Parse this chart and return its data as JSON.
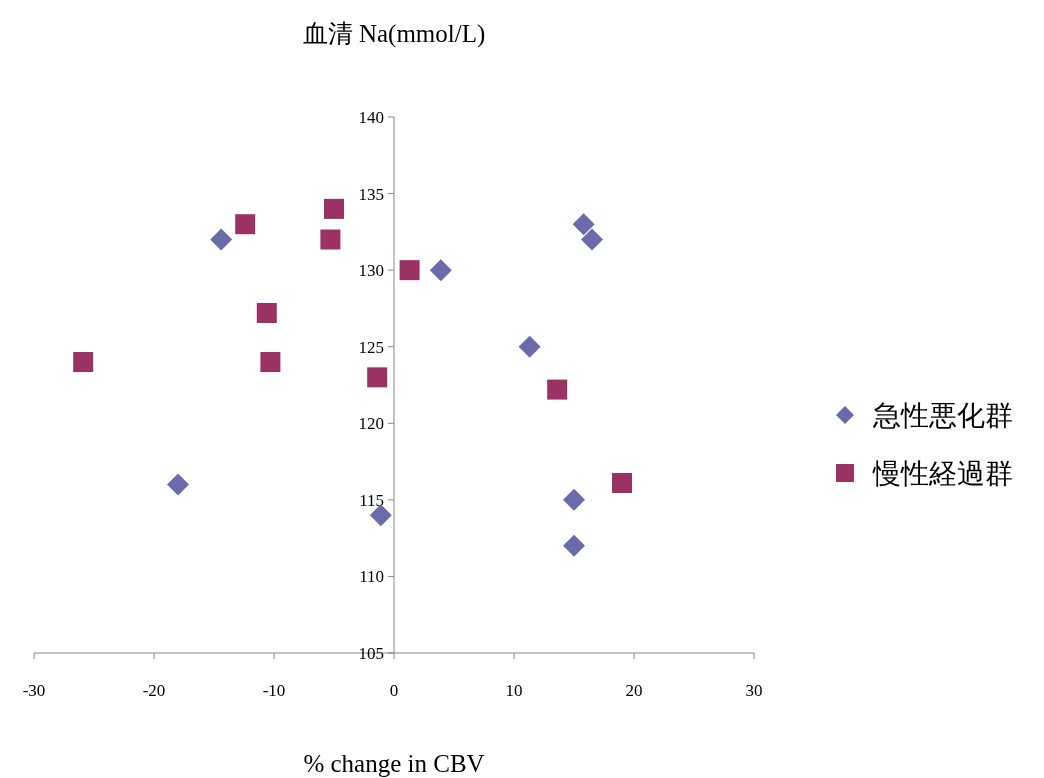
{
  "chart_data": {
    "type": "scatter",
    "title": "血清 Na(mmol/L)",
    "xlabel": "% change in CBV",
    "xlim": [
      -30,
      30
    ],
    "xticks": [
      -30,
      -20,
      -10,
      0,
      10,
      20,
      30
    ],
    "ylim": [
      105,
      140
    ],
    "yticks": [
      105,
      110,
      115,
      120,
      125,
      130,
      135,
      140
    ],
    "grid": false,
    "legend": "right",
    "series": [
      {
        "name": "急性悪化群",
        "color": "#6b6bab",
        "marker": "diamond",
        "x": [
          -14.4,
          -18,
          -1.1,
          3.9,
          11.3,
          15.8,
          16.5,
          15,
          15
        ],
        "values": [
          132,
          116,
          114,
          130,
          125,
          133,
          132,
          115,
          112
        ]
      },
      {
        "name": "慢性経過群",
        "color": "#9b3264",
        "marker": "square",
        "x": [
          -25.9,
          -12.4,
          -5,
          -5.3,
          -10.6,
          -10.3,
          -1.4,
          1.3,
          13.6,
          19
        ],
        "values": [
          124,
          133,
          134,
          132,
          127.2,
          124,
          123,
          130,
          122.2,
          116.1
        ]
      }
    ]
  }
}
